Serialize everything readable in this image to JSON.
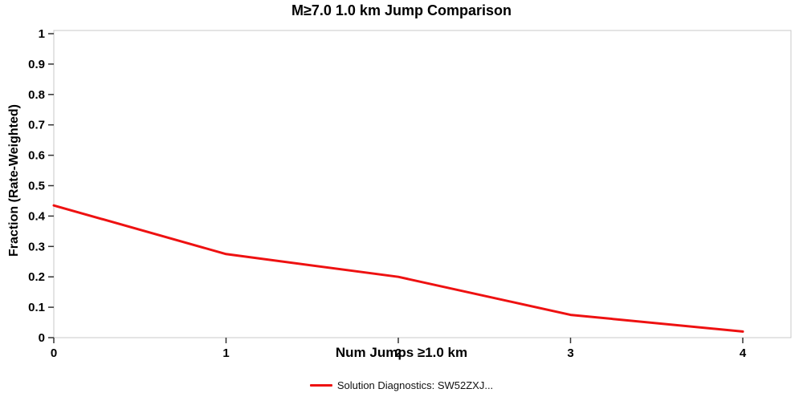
{
  "chart_data": {
    "type": "line",
    "title": "M≥7.0 1.0 km Jump Comparison",
    "xlabel": "Num Jumps ≥1.0 km",
    "ylabel": "Fraction (Rate-Weighted)",
    "xlim": [
      0,
      4
    ],
    "ylim": [
      0,
      1
    ],
    "grid": "off",
    "legend_position": "bottom-center",
    "x_ticks": [
      0,
      1,
      2,
      3,
      4
    ],
    "x_tick_labels": [
      "0",
      "1",
      "2",
      "3",
      "4"
    ],
    "y_ticks": [
      0,
      0.1,
      0.2,
      0.3,
      0.4,
      0.5,
      0.6,
      0.7,
      0.8,
      0.9,
      1
    ],
    "y_tick_labels": [
      "0",
      "0.1",
      "0.2",
      "0.3",
      "0.4",
      "0.5",
      "0.6",
      "0.7",
      "0.8",
      "0.9",
      "1"
    ],
    "series": [
      {
        "name": "Solution Diagnostics: SW52ZXJ...",
        "color": "#ee1111",
        "x": [
          0,
          1,
          2,
          3,
          4
        ],
        "y": [
          0.435,
          0.275,
          0.2,
          0.075,
          0.02
        ]
      }
    ],
    "plot_border_color": "#c8c8c8",
    "tick_color": "#333333"
  }
}
